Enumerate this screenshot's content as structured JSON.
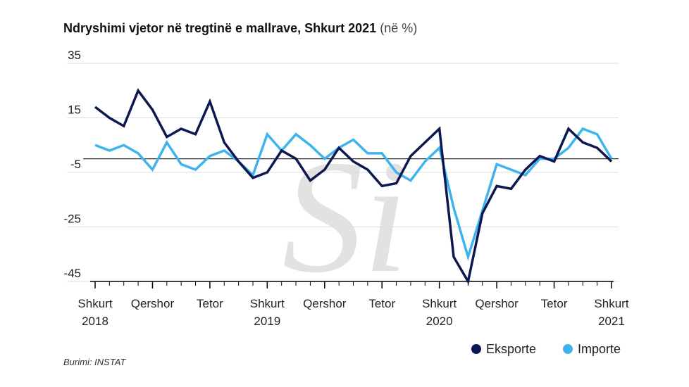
{
  "title": {
    "bold": "Ndryshimi vjetor në tregtinë e mallrave, Shkurt 2021",
    "unit": "(në %)"
  },
  "source": "Burimi: INSTAT",
  "watermark": "Si",
  "colors": {
    "eksporte": "#0d1850",
    "importe": "#3db4ee",
    "grid": "#dcdcdc",
    "zero": "#333333",
    "text": "#222222"
  },
  "chart_data": {
    "type": "line",
    "title": "Ndryshimi vjetor në tregtinë e mallrave, Shkurt 2021 (në %)",
    "xlabel": "",
    "ylabel": "",
    "ylim": [
      -45,
      35
    ],
    "yticks": [
      35,
      15,
      -5,
      -25,
      -45
    ],
    "zero_line": 0,
    "grid": true,
    "legend_position": "bottom-right",
    "x": [
      "2018-02",
      "2018-03",
      "2018-04",
      "2018-05",
      "2018-06",
      "2018-07",
      "2018-08",
      "2018-09",
      "2018-10",
      "2018-11",
      "2018-12",
      "2019-01",
      "2019-02",
      "2019-03",
      "2019-04",
      "2019-05",
      "2019-06",
      "2019-07",
      "2019-08",
      "2019-09",
      "2019-10",
      "2019-11",
      "2019-12",
      "2020-01",
      "2020-02",
      "2020-03",
      "2020-04",
      "2020-05",
      "2020-06",
      "2020-07",
      "2020-08",
      "2020-09",
      "2020-10",
      "2020-11",
      "2020-12",
      "2021-01",
      "2021-02"
    ],
    "x_tick_labels": [
      {
        "index": 0,
        "line1": "Shkurt",
        "line2": "2018"
      },
      {
        "index": 4,
        "line1": "Qershor",
        "line2": ""
      },
      {
        "index": 8,
        "line1": "Tetor",
        "line2": ""
      },
      {
        "index": 12,
        "line1": "Shkurt",
        "line2": "2019"
      },
      {
        "index": 16,
        "line1": "Qershor",
        "line2": ""
      },
      {
        "index": 20,
        "line1": "Tetor",
        "line2": ""
      },
      {
        "index": 24,
        "line1": "Shkurt",
        "line2": "2020"
      },
      {
        "index": 28,
        "line1": "Qershor",
        "line2": ""
      },
      {
        "index": 32,
        "line1": "Tetor",
        "line2": ""
      },
      {
        "index": 36,
        "line1": "Shkurt",
        "line2": "2021"
      }
    ],
    "series": [
      {
        "name": "Eksporte",
        "color": "#0d1850",
        "values": [
          19,
          15,
          12,
          25,
          18,
          8,
          11,
          9,
          21,
          6,
          -1,
          -7,
          -5,
          3,
          0,
          -8,
          -4,
          4,
          -1,
          -4,
          -10,
          -9,
          1,
          6,
          11,
          -36,
          -45,
          -20,
          -10,
          -11,
          -4,
          1,
          -1,
          11,
          6,
          4,
          -1
        ]
      },
      {
        "name": "Importe",
        "color": "#3db4ee",
        "values": [
          5,
          3,
          5,
          2,
          -4,
          6,
          -2,
          -4,
          1,
          3,
          -1,
          -6,
          9,
          3,
          9,
          5,
          0,
          4,
          7,
          2,
          2,
          -5,
          -8,
          -1,
          4,
          -18,
          -36,
          -19,
          -2,
          -4,
          -6,
          0,
          0,
          4,
          11,
          9,
          0
        ]
      }
    ]
  }
}
